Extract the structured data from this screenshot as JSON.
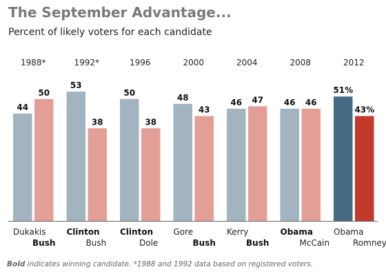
{
  "title": "The September Advantage...",
  "subtitle": "Percent of likely voters for each candidate",
  "footnote": {
    "bold_part": "Bold",
    "rest": " indicates winning candidate. *1988 and 1992 data based on registered voters."
  },
  "colors": {
    "dem": "#a3b4c1",
    "rep": "#e39f96",
    "dem_current": "#476a84",
    "rep_current": "#c03b2b",
    "axis": "#666666"
  },
  "chart_data": {
    "type": "bar",
    "title": "The September Advantage...",
    "subtitle": "Percent of likely voters for each candidate",
    "ylim": [
      0,
      60
    ],
    "grid": false,
    "categories": [
      "1988*",
      "1992*",
      "1996",
      "2000",
      "2004",
      "2008",
      "2012"
    ],
    "series": [
      {
        "party": "dem",
        "values": [
          44,
          53,
          50,
          48,
          46,
          46,
          51
        ],
        "value_labels": [
          "44",
          "53",
          "50",
          "48",
          "46",
          "46",
          "51%"
        ],
        "candidates": [
          "Dukakis",
          "Clinton",
          "Clinton",
          "Gore",
          "Kerry",
          "Obama",
          "Obama"
        ]
      },
      {
        "party": "rep",
        "values": [
          50,
          38,
          38,
          43,
          47,
          46,
          43
        ],
        "value_labels": [
          "50",
          "38",
          "38",
          "43",
          "47",
          "46",
          "43%"
        ],
        "candidates": [
          "Bush",
          "Bush",
          "Dole",
          "Bush",
          "Bush",
          "McCain",
          "Romney"
        ]
      }
    ],
    "winners": [
      "rep",
      "dem",
      "dem",
      "rep",
      "rep",
      "dem",
      null
    ]
  }
}
